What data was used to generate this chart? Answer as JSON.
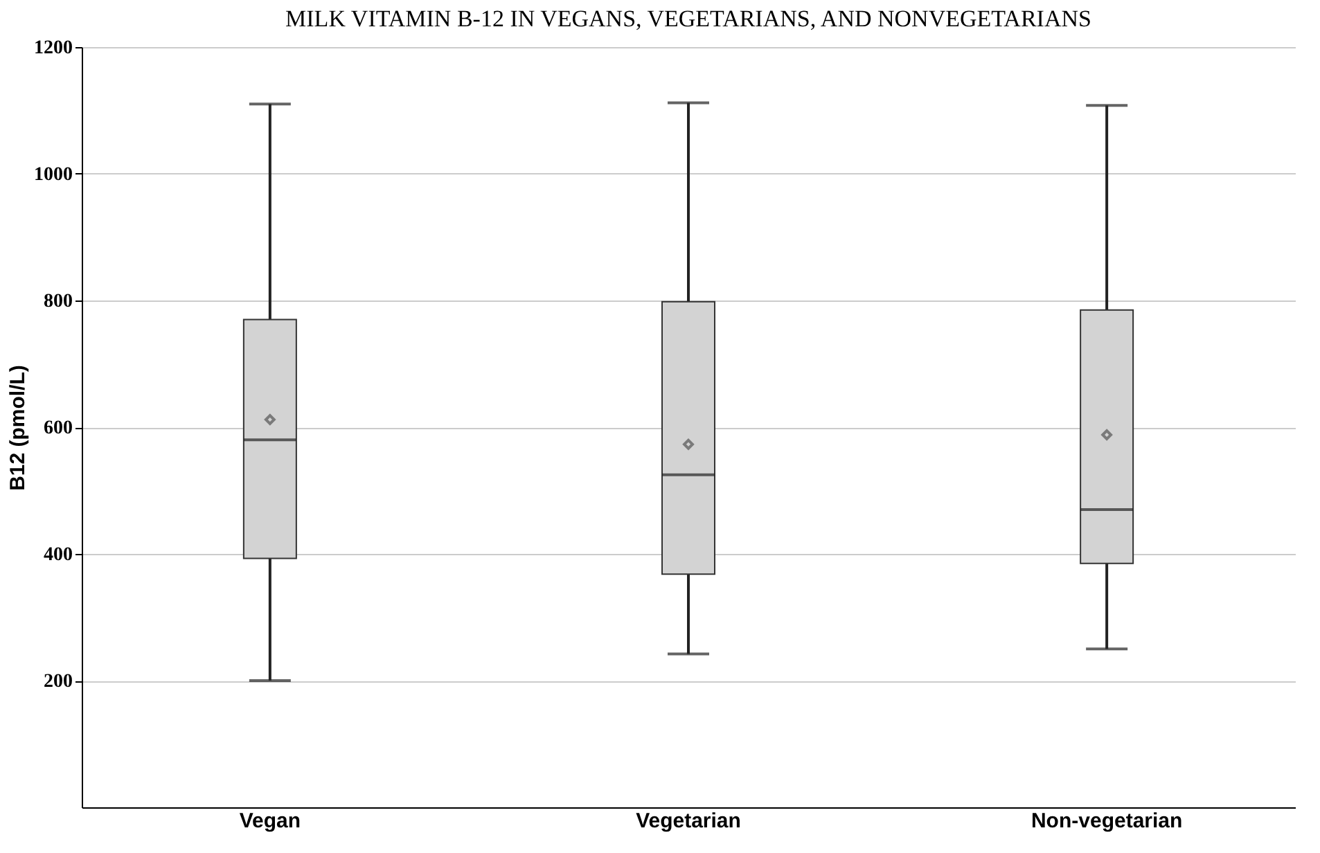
{
  "chart_data": {
    "type": "box",
    "title": "MILK VITAMIN B-12 IN VEGANS, VEGETARIANS, AND NONVEGETARIANS",
    "ylabel": "B12 (pmol/L)",
    "categories": [
      "Vegan",
      "Vegetarian",
      "Non-vegetarian"
    ],
    "boxes": [
      {
        "low": 200,
        "q1": 393,
        "median": 580,
        "q3": 770,
        "high": 1110,
        "mean": 612
      },
      {
        "low": 242,
        "q1": 368,
        "median": 525,
        "q3": 798,
        "high": 1112,
        "mean": 573
      },
      {
        "low": 250,
        "q1": 385,
        "median": 470,
        "q3": 785,
        "high": 1108,
        "mean": 588
      }
    ],
    "color": "#d3d3d3",
    "ylim": [
      0,
      1200
    ],
    "yticks": [
      200,
      400,
      600,
      800,
      1000,
      1200
    ],
    "grid": "y",
    "marker": "diamond"
  }
}
